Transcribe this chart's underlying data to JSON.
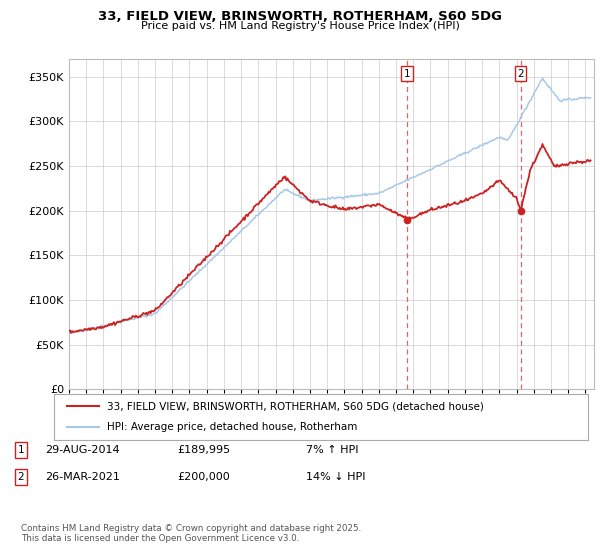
{
  "title": "33, FIELD VIEW, BRINSWORTH, ROTHERHAM, S60 5DG",
  "subtitle": "Price paid vs. HM Land Registry's House Price Index (HPI)",
  "ytick_values": [
    0,
    50000,
    100000,
    150000,
    200000,
    250000,
    300000,
    350000
  ],
  "ylim": [
    0,
    370000
  ],
  "xlim_start": 1995.0,
  "xlim_end": 2025.5,
  "hpi_color": "#a8c8e8",
  "price_color": "#cc2222",
  "dashed_color": "#dd6666",
  "marker1_date": 2014.66,
  "marker2_date": 2021.23,
  "sale1_price": 189995,
  "sale2_price": 200000,
  "legend_line1": "33, FIELD VIEW, BRINSWORTH, ROTHERHAM, S60 5DG (detached house)",
  "legend_line2": "HPI: Average price, detached house, Rotherham",
  "footnote": "Contains HM Land Registry data © Crown copyright and database right 2025.\nThis data is licensed under the Open Government Licence v3.0.",
  "background_color": "#ffffff",
  "grid_color": "#cccccc"
}
